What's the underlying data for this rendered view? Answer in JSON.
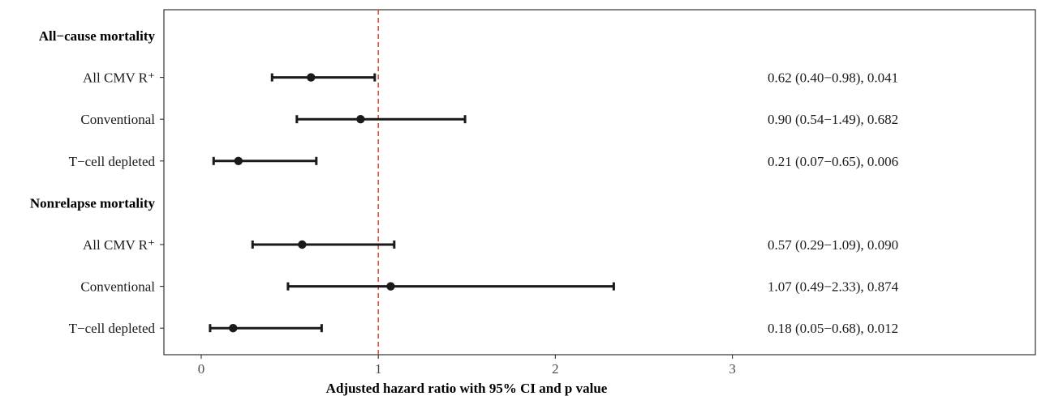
{
  "chart_data": {
    "type": "forest",
    "title": "",
    "xlabel": "Adjusted hazard ratio with 95% CI and p value",
    "ylabel": "",
    "xlim": [
      -0.2,
      4.9
    ],
    "xticks": [
      0,
      1,
      2,
      3
    ],
    "reference_line": {
      "x": 1,
      "color": "#e8553e",
      "style": "dashed"
    },
    "colors": {
      "points": "#1a1a1a",
      "frame": "#333333"
    },
    "rows": [
      {
        "kind": "group",
        "label": "All−cause mortality"
      },
      {
        "kind": "item",
        "label": "All CMV R⁺",
        "estimate": 0.62,
        "lower": 0.4,
        "upper": 0.98,
        "annotation": "0.62 (0.40−0.98), 0.041"
      },
      {
        "kind": "item",
        "label": "Conventional",
        "estimate": 0.9,
        "lower": 0.54,
        "upper": 1.49,
        "annotation": "0.90 (0.54−1.49), 0.682"
      },
      {
        "kind": "item",
        "label": "T−cell depleted",
        "estimate": 0.21,
        "lower": 0.07,
        "upper": 0.65,
        "annotation": "0.21 (0.07−0.65), 0.006"
      },
      {
        "kind": "group",
        "label": "Nonrelapse mortality"
      },
      {
        "kind": "item",
        "label": "All CMV R⁺",
        "estimate": 0.57,
        "lower": 0.29,
        "upper": 1.09,
        "annotation": "0.57 (0.29−1.09), 0.090"
      },
      {
        "kind": "item",
        "label": "Conventional",
        "estimate": 1.07,
        "lower": 0.49,
        "upper": 2.33,
        "annotation": "1.07 (0.49−2.33), 0.874"
      },
      {
        "kind": "item",
        "label": "T−cell depleted",
        "estimate": 0.18,
        "lower": 0.05,
        "upper": 0.68,
        "annotation": "0.18 (0.05−0.68), 0.012"
      }
    ]
  }
}
